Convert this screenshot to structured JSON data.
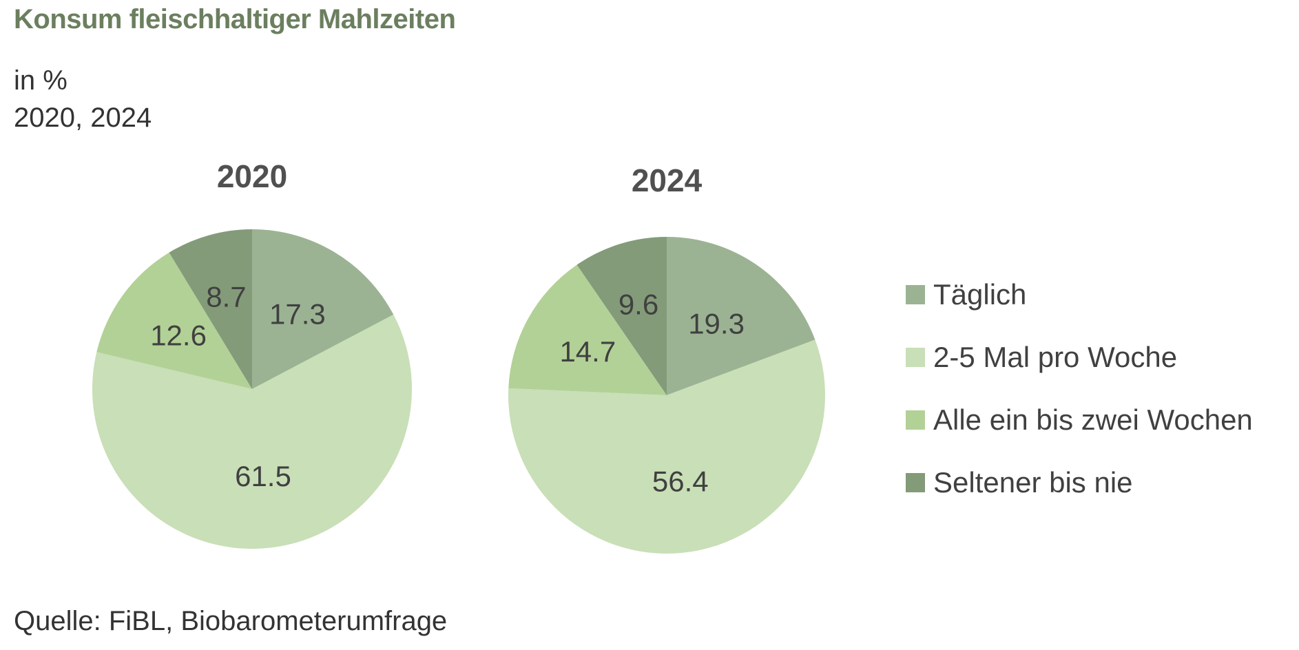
{
  "title": "Konsum fleischhaltiger Mahlzeiten",
  "subtitle_lines": [
    "in %",
    "2020, 2024"
  ],
  "source": "Quelle: FiBL, Biobarometerumfrage",
  "chart_data": [
    {
      "type": "pie",
      "title": "2020",
      "categories": [
        "Täglich",
        "2-5 Mal pro Woche",
        "Alle ein bis zwei Wochen",
        "Seltener bis nie"
      ],
      "values": [
        17.3,
        61.5,
        12.6,
        8.7
      ],
      "value_labels": [
        "17.3",
        "61.5",
        "12.6",
        "8.7"
      ],
      "colors": [
        "#9bb393",
        "#c9dfb7",
        "#b2d196",
        "#839b79"
      ],
      "start_angle_deg": 0,
      "direction": "clockwise"
    },
    {
      "type": "pie",
      "title": "2024",
      "categories": [
        "Täglich",
        "2-5 Mal pro Woche",
        "Alle ein bis zwei Wochen",
        "Seltener bis nie"
      ],
      "values": [
        19.3,
        56.4,
        14.7,
        9.6
      ],
      "value_labels": [
        "19.3",
        "56.4",
        "14.7",
        "9.6"
      ],
      "colors": [
        "#9bb393",
        "#c9dfb7",
        "#b2d196",
        "#839b79"
      ],
      "start_angle_deg": 0,
      "direction": "clockwise"
    }
  ],
  "legend": {
    "placement": "right",
    "items": [
      {
        "label": "Täglich",
        "color": "#9bb393"
      },
      {
        "label": "2-5 Mal pro Woche",
        "color": "#c9dfb7"
      },
      {
        "label": "Alle ein bis zwei Wochen",
        "color": "#b2d196"
      },
      {
        "label": "Seltener bis nie",
        "color": "#839b79"
      }
    ]
  }
}
